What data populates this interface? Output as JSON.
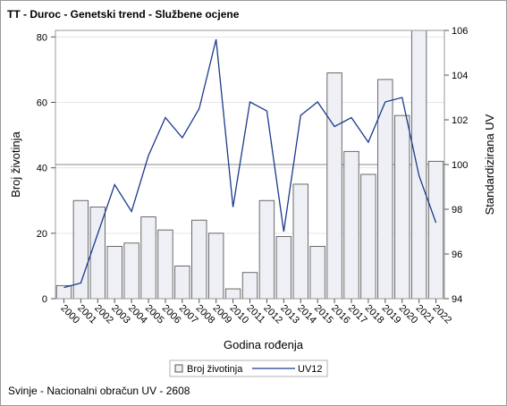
{
  "chart_data": {
    "type": "bar",
    "title": "TT - Duroc - Genetski trend - Službene ocjene",
    "footnote": "Svinje - Nacionalni obračun UV - 2608",
    "xlabel": "Godina rođenja",
    "ylabel": "Broj životinja",
    "y2label": "Standardizirana UV",
    "categories": [
      "2000",
      "2001",
      "2002",
      "2003",
      "2004",
      "2005",
      "2006",
      "2007",
      "2008",
      "2009",
      "2010",
      "2011",
      "2012",
      "2013",
      "2014",
      "2015",
      "2016",
      "2017",
      "2018",
      "2019",
      "2020",
      "2021",
      "2022"
    ],
    "ylim": [
      0,
      82
    ],
    "y_ticks": [
      0,
      20,
      40,
      60,
      80
    ],
    "y2lim": [
      94,
      106
    ],
    "y2_ticks": [
      94,
      96,
      98,
      100,
      102,
      104,
      106
    ],
    "reference_line_y2": 100,
    "series": [
      {
        "name": "Broj životinja",
        "type": "bar",
        "axis": "left",
        "color": "#eef0f5",
        "values": [
          4,
          30,
          28,
          16,
          17,
          25,
          21,
          10,
          24,
          20,
          3,
          8,
          30,
          19,
          35,
          16,
          69,
          45,
          38,
          67,
          56,
          82,
          42
        ]
      },
      {
        "name": "UV12",
        "type": "line",
        "axis": "right",
        "color": "#1a3a8c",
        "values": [
          94.5,
          94.7,
          96.9,
          99.1,
          97.9,
          100.4,
          102.1,
          101.2,
          102.5,
          105.6,
          98.1,
          102.8,
          102.4,
          97.0,
          102.2,
          102.8,
          101.7,
          102.1,
          101.0,
          102.8,
          103.0,
          99.5,
          97.4
        ]
      }
    ],
    "legend_position": "bottom",
    "grid": true
  }
}
